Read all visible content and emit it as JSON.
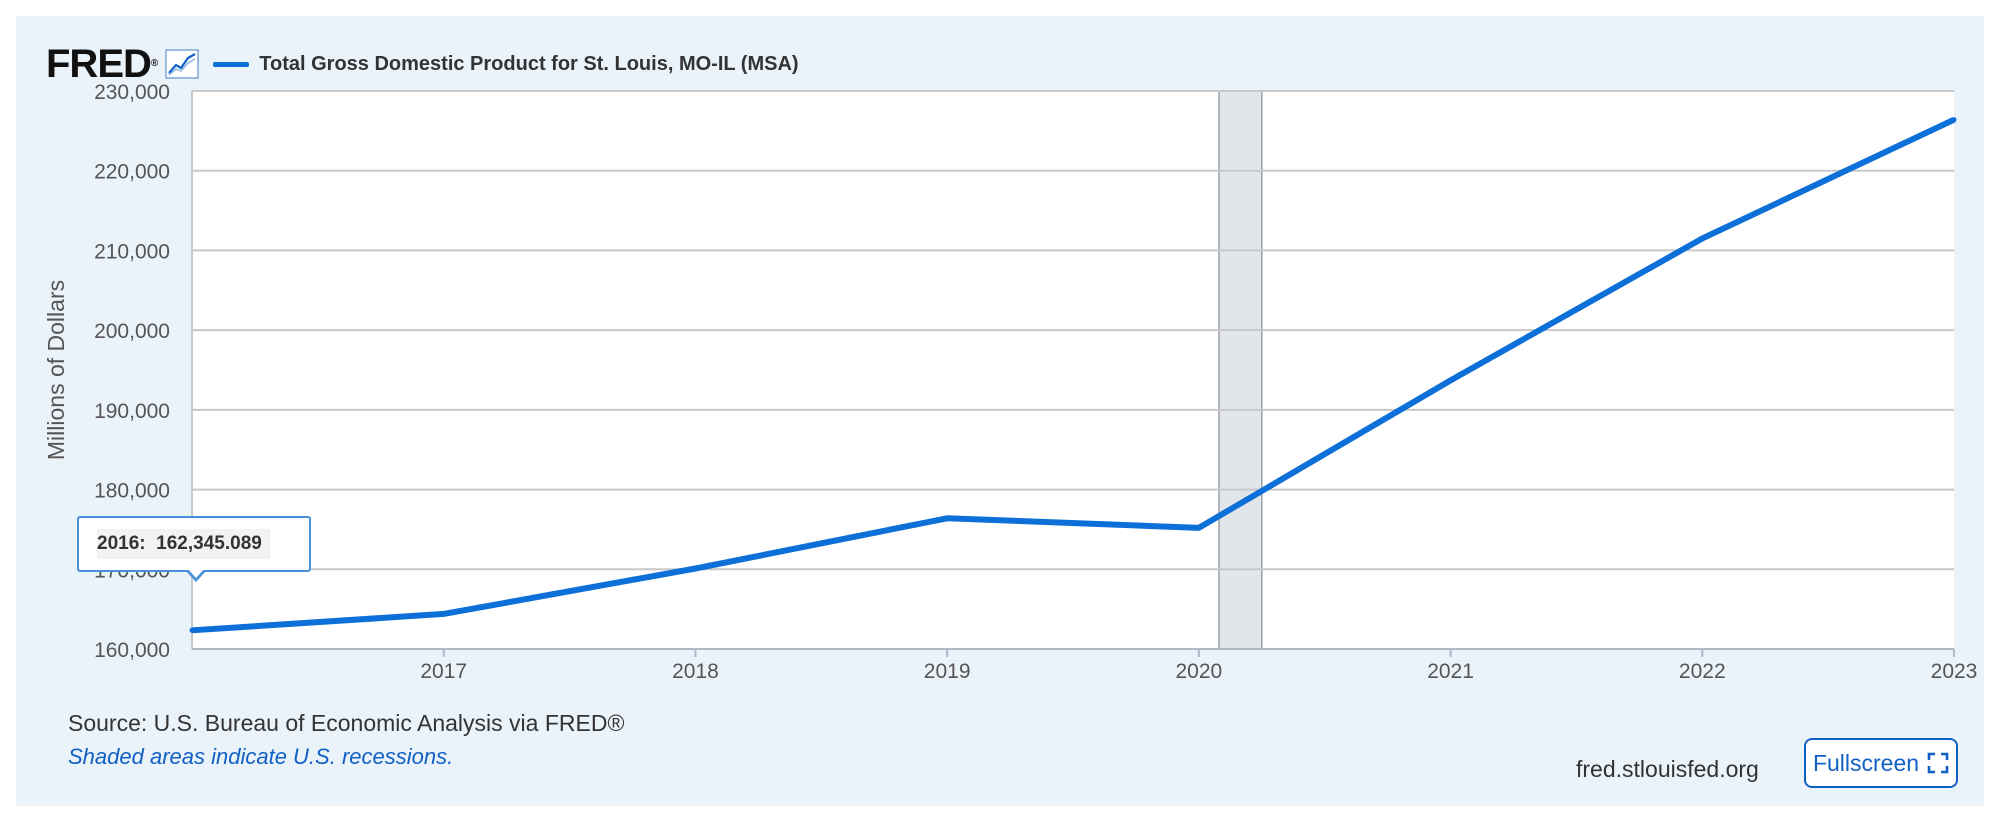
{
  "header": {
    "logo_text": "FRED",
    "logo_icon": "line-graph-icon",
    "series_legend": "Total Gross Domestic Product for St. Louis, MO-IL (MSA)"
  },
  "colors": {
    "series": "#0d6fd8",
    "recession_shade": "#e2e6ea",
    "grid": "#c8c8c8",
    "background": "#eaf2fa",
    "link": "#1160c4"
  },
  "chart_data": {
    "type": "line",
    "title": "",
    "ylabel": "Millions of Dollars",
    "xlabel": "",
    "x": [
      2016,
      2017,
      2018,
      2019,
      2020,
      2021,
      2022,
      2023
    ],
    "xticks": [
      "2017",
      "2018",
      "2019",
      "2020",
      "2021",
      "2022",
      "2023"
    ],
    "ylim": [
      160000,
      230000
    ],
    "yticks": [
      "160,000",
      "170,000",
      "180,000",
      "190,000",
      "200,000",
      "210,000",
      "220,000",
      "230,000"
    ],
    "series": [
      {
        "name": "Total Gross Domestic Product for St. Louis, MO-IL (MSA)",
        "values": [
          162345.089,
          164400,
          170100,
          176400,
          175200,
          193700,
          211500,
          226400
        ]
      }
    ],
    "recession_shading": [
      {
        "start": 2020.08,
        "end": 2020.25
      }
    ],
    "grid": true,
    "legend_placement": "top-left"
  },
  "tooltip": {
    "label": "2016:",
    "value": "162,345.089"
  },
  "footer": {
    "source": "Source: U.S. Bureau of Economic Analysis via FRED®",
    "recession_note": "Shaded areas indicate U.S. recessions.",
    "site": "fred.stlouisfed.org",
    "fullscreen_label": "Fullscreen",
    "fullscreen_icon": "expand-icon"
  }
}
